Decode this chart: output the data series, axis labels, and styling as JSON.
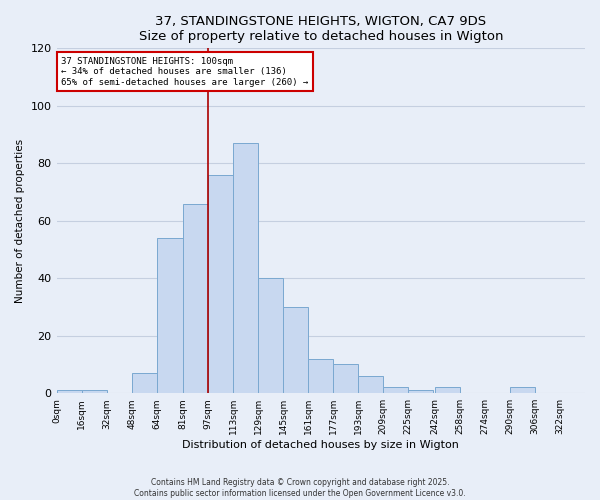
{
  "title": "37, STANDINGSTONE HEIGHTS, WIGTON, CA7 9DS",
  "subtitle": "Size of property relative to detached houses in Wigton",
  "xlabel": "Distribution of detached houses by size in Wigton",
  "ylabel": "Number of detached properties",
  "bar_left_edges": [
    0,
    16,
    32,
    48,
    64,
    81,
    97,
    113,
    129,
    145,
    161,
    177,
    193,
    209,
    225,
    242,
    258,
    274,
    290,
    306
  ],
  "bar_widths": [
    16,
    16,
    16,
    16,
    17,
    16,
    16,
    16,
    16,
    16,
    16,
    16,
    16,
    16,
    16,
    16,
    16,
    16,
    16,
    16
  ],
  "bar_heights": [
    1,
    1,
    0,
    7,
    54,
    66,
    76,
    87,
    40,
    30,
    12,
    10,
    6,
    2,
    1,
    2,
    0,
    0,
    2,
    0
  ],
  "bar_color": "#c8d8f0",
  "bar_edgecolor": "#7aa8d0",
  "ylim": [
    0,
    120
  ],
  "yticks": [
    0,
    20,
    40,
    60,
    80,
    100,
    120
  ],
  "xtick_labels": [
    "0sqm",
    "16sqm",
    "32sqm",
    "48sqm",
    "64sqm",
    "81sqm",
    "97sqm",
    "113sqm",
    "129sqm",
    "145sqm",
    "161sqm",
    "177sqm",
    "193sqm",
    "209sqm",
    "225sqm",
    "242sqm",
    "258sqm",
    "274sqm",
    "290sqm",
    "306sqm",
    "322sqm"
  ],
  "xtick_positions": [
    0,
    16,
    32,
    48,
    64,
    81,
    97,
    113,
    129,
    145,
    161,
    177,
    193,
    209,
    225,
    242,
    258,
    274,
    290,
    306,
    322
  ],
  "red_line_x": 97,
  "annotation_line1": "37 STANDINGSTONE HEIGHTS: 100sqm",
  "annotation_line2": "← 34% of detached houses are smaller (136)",
  "annotation_line3": "65% of semi-detached houses are larger (260) →",
  "background_color": "#e8eef8",
  "grid_color": "#c5cfe0",
  "footer_line1": "Contains HM Land Registry data © Crown copyright and database right 2025.",
  "footer_line2": "Contains public sector information licensed under the Open Government Licence v3.0."
}
